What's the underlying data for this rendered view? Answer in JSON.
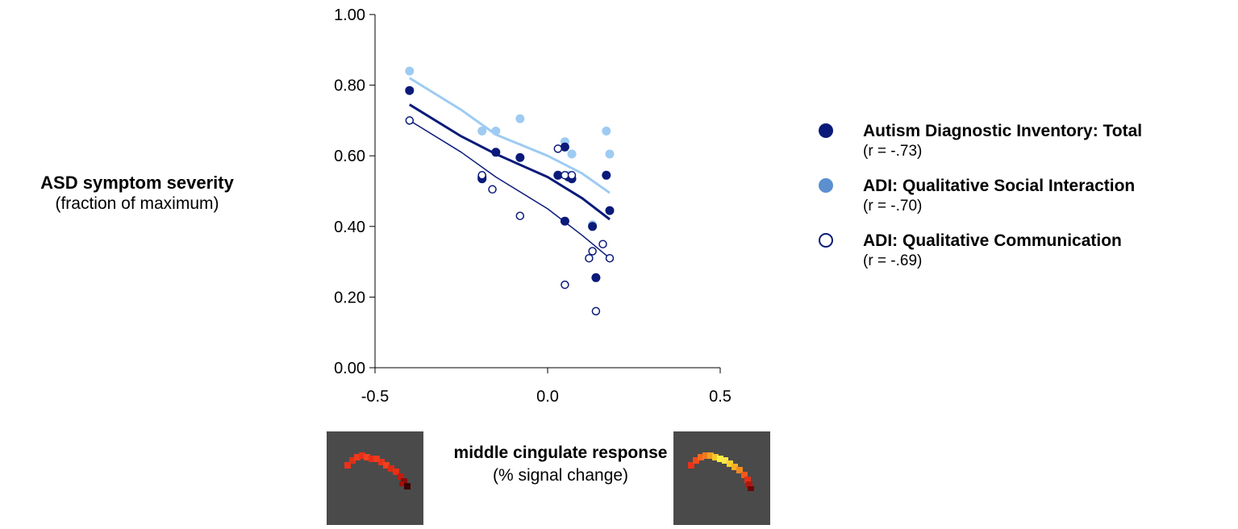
{
  "chart_data": {
    "type": "scatter",
    "title": "",
    "ylabel": "ASD symptom severity",
    "ylabel_sub": "(fraction of maximum)",
    "xlabel": "middle cingulate response",
    "xlabel_sub": "(% signal change)",
    "xlim": [
      -0.5,
      0.5
    ],
    "ylim": [
      0,
      1
    ],
    "xticks": [
      "-0.5",
      "0.0",
      "0.5"
    ],
    "yticks": [
      "0.00",
      "0.20",
      "0.40",
      "0.60",
      "0.80",
      "1.00"
    ],
    "grid": false,
    "legend_position": "right",
    "series": [
      {
        "name": "Autism Diagnostic Inventory:  Total",
        "r_label": "(r = -.73)",
        "color": "#0a1a7a",
        "marker": "filled",
        "line_width": 3,
        "x": [
          -0.4,
          -0.19,
          -0.19,
          -0.15,
          -0.08,
          0.03,
          0.05,
          0.06,
          0.07,
          0.05,
          0.13,
          0.14,
          0.17,
          0.18
        ],
        "y": [
          0.785,
          0.54,
          0.535,
          0.61,
          0.595,
          0.545,
          0.625,
          0.54,
          0.535,
          0.415,
          0.4,
          0.255,
          0.545,
          0.445
        ],
        "trend": [
          [
            -0.4,
            0.745
          ],
          [
            -0.25,
            0.655
          ],
          [
            -0.15,
            0.605
          ],
          [
            0.0,
            0.54
          ],
          [
            0.1,
            0.48
          ],
          [
            0.18,
            0.42
          ]
        ]
      },
      {
        "name": "ADI: Qualitative Social Interaction",
        "r_label": "(r = -.70)",
        "color": "#9ecbf2",
        "legend_color": "#5b8fd0",
        "marker": "filled",
        "line_width": 3,
        "x": [
          -0.4,
          -0.19,
          -0.15,
          -0.08,
          0.03,
          0.05,
          0.07,
          0.06,
          0.13,
          0.17,
          0.18
        ],
        "y": [
          0.84,
          0.67,
          0.67,
          0.705,
          0.545,
          0.64,
          0.605,
          0.545,
          0.405,
          0.67,
          0.605
        ],
        "trend": [
          [
            -0.4,
            0.82
          ],
          [
            -0.25,
            0.73
          ],
          [
            -0.15,
            0.66
          ],
          [
            0.0,
            0.6
          ],
          [
            0.1,
            0.55
          ],
          [
            0.18,
            0.495
          ]
        ]
      },
      {
        "name": "ADI:  Qualitative Communication",
        "r_label": "(r = -.69)",
        "color": "#0a1a7a",
        "marker": "open",
        "line_width": 1.5,
        "x": [
          -0.4,
          -0.19,
          -0.16,
          -0.08,
          0.03,
          0.05,
          0.05,
          0.07,
          0.12,
          0.13,
          0.14,
          0.16,
          0.18
        ],
        "y": [
          0.7,
          0.545,
          0.505,
          0.43,
          0.62,
          0.545,
          0.235,
          0.545,
          0.31,
          0.33,
          0.16,
          0.35,
          0.31
        ],
        "trend": [
          [
            -0.4,
            0.7
          ],
          [
            -0.25,
            0.61
          ],
          [
            -0.15,
            0.54
          ],
          [
            0.0,
            0.45
          ],
          [
            0.1,
            0.375
          ],
          [
            0.18,
            0.31
          ]
        ]
      }
    ]
  }
}
